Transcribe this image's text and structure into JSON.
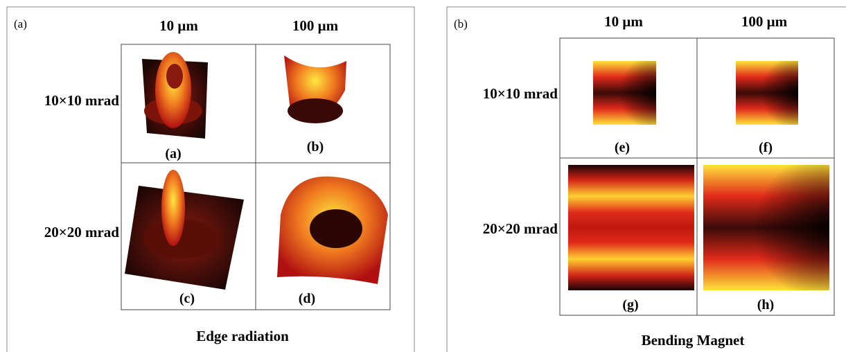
{
  "panels": [
    {
      "label": "(a)",
      "columns": [
        "10 μm",
        "100 μm"
      ],
      "rows": [
        "10×10 mrad",
        "20×20 mrad"
      ],
      "cells": [
        "(a)",
        "(b)",
        "(c)",
        "(d)"
      ],
      "caption": "Edge radiation"
    },
    {
      "label": "(b)",
      "columns": [
        "10 μm",
        "100 μm"
      ],
      "rows": [
        "10×10 mrad",
        "20×20 mrad"
      ],
      "cells": [
        "(e)",
        "(f)",
        "(g)",
        "(h)"
      ],
      "caption": "Bending Magnet"
    }
  ]
}
